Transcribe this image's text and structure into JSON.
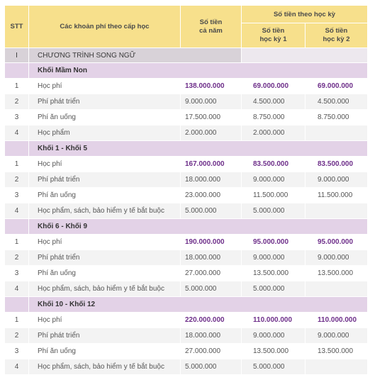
{
  "header": {
    "stt": "STT",
    "name": "Các khoản phí theo cấp học",
    "year_line1": "Số tiền",
    "year_line2": "cả năm",
    "semesters": "Số tiền theo học kỳ",
    "sem1_line1": "Số tiền",
    "sem1_line2": "học kỳ 1",
    "sem2_line1": "Số tiền",
    "sem2_line2": "học kỳ 2"
  },
  "section": {
    "stt": "I",
    "name": "CHƯƠNG TRÌNH SONG NGỮ"
  },
  "groups": [
    {
      "name": "Khối Mầm Non",
      "rows": [
        {
          "stt": "1",
          "name": "Học phí",
          "year": "138.000.000",
          "s1": "69.000.000",
          "s2": "69.000.000"
        },
        {
          "stt": "2",
          "name": "Phí phát triển",
          "year": "9.000.000",
          "s1": "4.500.000",
          "s2": "4.500.000"
        },
        {
          "stt": "3",
          "name": "Phí ăn uống",
          "year": "17.500.000",
          "s1": "8.750.000",
          "s2": "8.750.000"
        },
        {
          "stt": "4",
          "name": "Học phẩm",
          "year": "2.000.000",
          "s1": "2.000.000",
          "s2": ""
        }
      ]
    },
    {
      "name": "Khối 1 - Khối 5",
      "rows": [
        {
          "stt": "1",
          "name": "Học phí",
          "year": "167.000.000",
          "s1": "83.500.000",
          "s2": "83.500.000"
        },
        {
          "stt": "2",
          "name": "Phí phát triển",
          "year": "18.000.000",
          "s1": "9.000.000",
          "s2": "9.000.000"
        },
        {
          "stt": "3",
          "name": "Phí ăn uống",
          "year": "23.000.000",
          "s1": "11.500.000",
          "s2": "11.500.000"
        },
        {
          "stt": "4",
          "name": "Học phẩm, sách, bảo hiểm y tế bắt buộc",
          "year": "5.000.000",
          "s1": "5.000.000",
          "s2": ""
        }
      ]
    },
    {
      "name": "Khối 6 - Khối 9",
      "rows": [
        {
          "stt": "1",
          "name": "Học phí",
          "year": "190.000.000",
          "s1": "95.000.000",
          "s2": "95.000.000"
        },
        {
          "stt": "2",
          "name": "Phí phát triển",
          "year": "18.000.000",
          "s1": "9.000.000",
          "s2": "9.000.000"
        },
        {
          "stt": "3",
          "name": "Phí ăn uống",
          "year": "27.000.000",
          "s1": "13.500.000",
          "s2": "13.500.000"
        },
        {
          "stt": "4",
          "name": "Học phẩm, sách, bảo hiểm y tế bắt buộc",
          "year": "5.000.000",
          "s1": "5.000.000",
          "s2": ""
        }
      ]
    },
    {
      "name": "Khối 10 - Khối 12",
      "rows": [
        {
          "stt": "1",
          "name": "Học phí",
          "year": "220.000.000",
          "s1": "110.000.000",
          "s2": "110.000.000"
        },
        {
          "stt": "2",
          "name": "Phí phát triển",
          "year": "18.000.000",
          "s1": "9.000.000",
          "s2": "9.000.000"
        },
        {
          "stt": "3",
          "name": "Phí ăn uống",
          "year": "27.000.000",
          "s1": "13.500.000",
          "s2": "13.500.000"
        },
        {
          "stt": "4",
          "name": "Học phẩm, sách, bảo hiểm y tế bắt buộc",
          "year": "5.000.000",
          "s1": "5.000.000",
          "s2": ""
        }
      ]
    }
  ],
  "colors": {
    "header_bg": "#f7e08c",
    "section_bg": "#d8d2d8",
    "group_bg": "#e3d2e7",
    "highlight_text": "#6e2f8a"
  }
}
